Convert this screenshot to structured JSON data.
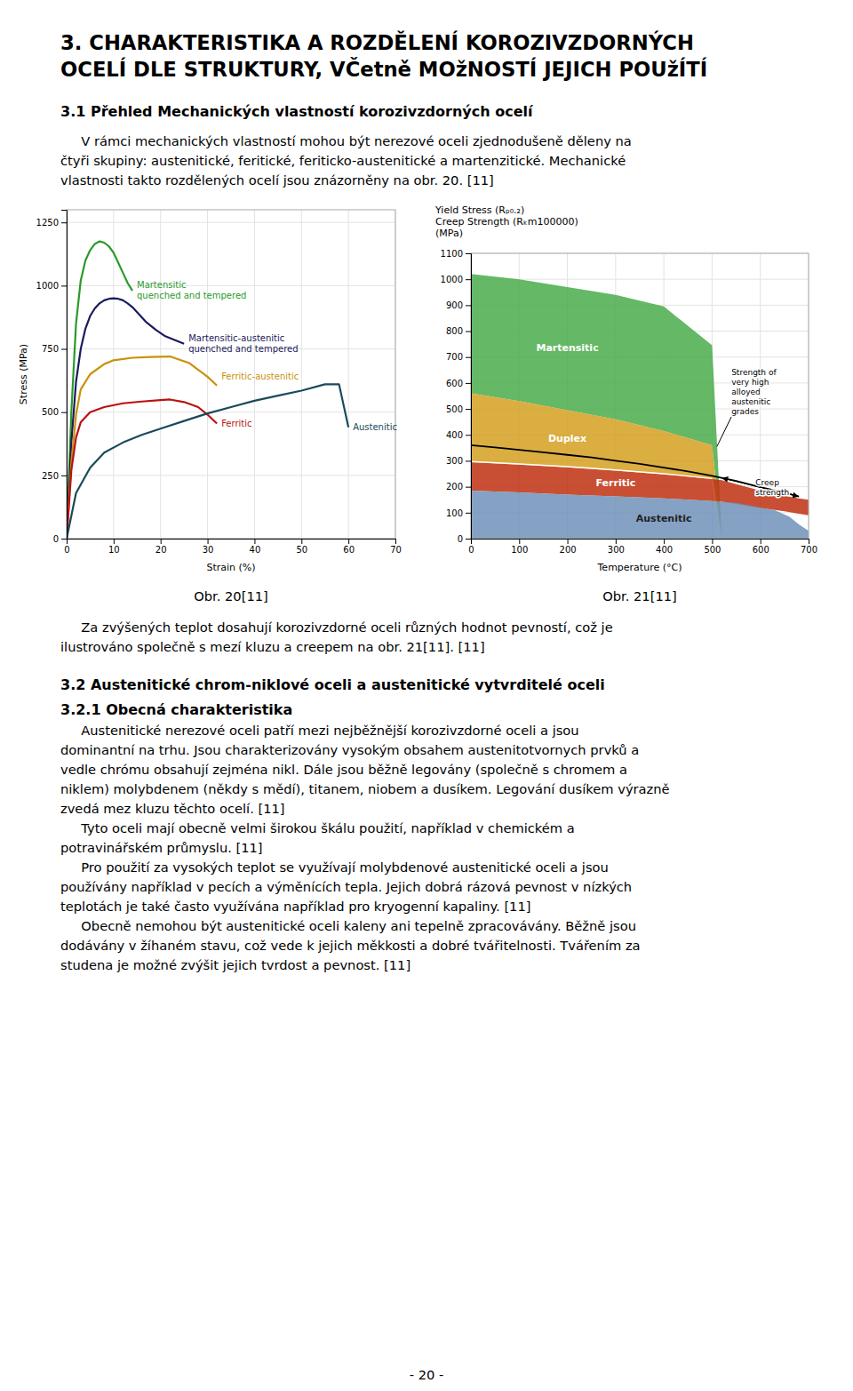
{
  "page_bg": "#ffffff",
  "text_color": "#000000",
  "title_line1": "3. CHARAKTERISTIKA A ROZDĚLENÍ KOROZIVZDORNÝCH",
  "title_line2": "OCELÍ DLE STRUKTURY, VČetně MOžNOSTÍ JEJICH POUžÍTÍ",
  "section_title": "3.1 Přehled Mechanických vlastností korozivzdorných ocelí",
  "para1_lines": [
    "     V rámci mechanických vlastností mohou být nerezové oceli zjednodušeně děleny na",
    "čtyři skupiny: austenitické, feritické, feriticko-austenitické a martenzitické. Mechanické",
    "vlastnosti takto rozdělených ocelí jsou znázorněny na obr. 20. [11]"
  ],
  "obr20_label": "Obr. 20[11]",
  "obr21_label": "Obr. 21[11]",
  "para2_lines": [
    "     Za zvýšených teplot dosahují korozivzdorné oceli různých hodnot pevností, což je",
    "ilustrováno společně s mezí kluzu a creepem na obr. 21[11]. [11]"
  ],
  "section2_title": "3.2 Austenitické chrom-niklové oceli a austenitické vytvrditelé oceli",
  "section21_title": "3.2.1 Obecná charakteristika",
  "para3_lines": [
    "     Austenitické nerezové oceli patří mezi nejběžnější korozivzdorné oceli a jsou",
    "dominantní na trhu. Jsou charakterizovány vysokým obsahem austenitotvornych prvků a",
    "vedle chrómu obsahují zejména nikl. Dále jsou běžně legovány (společně s chromem a",
    "niklem) molybdenem (někdy s mědí), titanem, niobem a dusíkem. Legování dusíkem výrazně",
    "zvedá mez kluzu těchto ocelí. [11]"
  ],
  "para4_lines": [
    "     Tyto oceli mají obecně velmi širokou škálu použití, například v chemickém a",
    "potravinářském průmyslu. [11]"
  ],
  "para5_lines": [
    "     Pro použití za vysokých teplot se využívají molybdenové austenitické oceli a jsou",
    "používány například v pecích a výměnících tepla. Jejich dobrá rázová pevnost v nízkých",
    "teplotách je také často využívána například pro kryogenní kapaliny. [11]"
  ],
  "para6_lines": [
    "     Obecně nemohou být austenitické oceli kaleny ani tepelně zpracovávány. Běžně jsou",
    "dodávány v žíhaném stavu, což vede k jejich měkkosti a dobré tvářitelnosti. Tvářením za",
    "studena je možné zvýšit jejich tvrdost a pevnost. [11]"
  ],
  "page_number": "- 20 -",
  "chart_data": [
    {
      "type": "line",
      "xlabel": "Strain (%)",
      "ylabel": "Stress (MPa)",
      "xlim": [
        0,
        70
      ],
      "ylim": [
        0,
        1300
      ],
      "xticks": [
        0,
        10,
        20,
        30,
        40,
        50,
        60,
        70
      ],
      "yticks": [
        0,
        250,
        500,
        750,
        1000,
        1250
      ],
      "grid": true,
      "series": [
        {
          "name": "Martensitic\nquenched and tempered",
          "color": "#2a9a2a",
          "x": [
            0,
            1,
            2,
            3,
            4,
            5,
            6,
            7,
            8,
            9,
            10,
            11,
            12,
            13,
            14
          ],
          "values": [
            0,
            500,
            850,
            1020,
            1100,
            1140,
            1165,
            1175,
            1170,
            1155,
            1130,
            1090,
            1050,
            1010,
            980
          ]
        },
        {
          "name": "Martensitic-austenitic\nquenched and tempered",
          "color": "#1a1a5e",
          "x": [
            0,
            1,
            2,
            3,
            4,
            5,
            6,
            7,
            8,
            9,
            10,
            11,
            12,
            13,
            14,
            15,
            17,
            19,
            21,
            23,
            25
          ],
          "values": [
            0,
            380,
            620,
            750,
            830,
            880,
            910,
            930,
            942,
            948,
            950,
            948,
            942,
            930,
            915,
            895,
            855,
            825,
            800,
            785,
            770
          ]
        },
        {
          "name": "Ferritic-austenitic",
          "color": "#c8920a",
          "x": [
            0,
            1,
            2,
            3,
            5,
            8,
            10,
            14,
            18,
            22,
            26,
            30,
            32
          ],
          "values": [
            0,
            300,
            490,
            590,
            650,
            690,
            705,
            715,
            718,
            720,
            695,
            640,
            605
          ]
        },
        {
          "name": "Ferritic",
          "color": "#bb1111",
          "x": [
            0,
            1,
            2,
            3,
            5,
            8,
            12,
            16,
            20,
            22,
            25,
            28,
            30,
            32
          ],
          "values": [
            0,
            270,
            400,
            460,
            500,
            520,
            535,
            542,
            548,
            550,
            540,
            520,
            490,
            455
          ]
        },
        {
          "name": "Austenitic",
          "color": "#1a4a5a",
          "x": [
            0,
            2,
            5,
            8,
            12,
            16,
            20,
            25,
            30,
            35,
            40,
            45,
            50,
            55,
            58,
            60
          ],
          "values": [
            0,
            180,
            280,
            340,
            380,
            410,
            435,
            465,
            495,
            520,
            545,
            565,
            585,
            610,
            610,
            440
          ]
        }
      ]
    },
    {
      "type": "area",
      "xlabel": "Temperature (°C)",
      "ylabel": "Yield Stress (Rₚ₀.₂)\nCreep Strength (Rₖm100000)\n(MPa)",
      "xlim": [
        0,
        700
      ],
      "ylim": [
        0,
        1100
      ],
      "xticks": [
        0,
        100,
        200,
        300,
        400,
        500,
        600,
        700
      ],
      "yticks": [
        0,
        100,
        200,
        300,
        400,
        500,
        600,
        700,
        800,
        900,
        1000,
        1100
      ],
      "grid": true,
      "series": [
        {
          "name": "Martensitic",
          "type": "area",
          "color": "#4aac4a",
          "x": [
            0,
            100,
            200,
            300,
            400,
            500,
            520
          ],
          "low": [
            560,
            530,
            495,
            460,
            415,
            360,
            0
          ],
          "high": [
            1020,
            1000,
            970,
            940,
            895,
            745,
            0
          ]
        },
        {
          "name": "Duplex",
          "type": "area",
          "color": "#d4a020",
          "x": [
            0,
            100,
            200,
            300,
            400,
            500,
            520
          ],
          "low": [
            295,
            285,
            275,
            262,
            248,
            230,
            0
          ],
          "high": [
            560,
            530,
            495,
            460,
            415,
            360,
            0
          ]
        },
        {
          "name": "Ferritic",
          "type": "area",
          "color": "#c03010",
          "x": [
            0,
            100,
            200,
            300,
            400,
            500,
            520,
            600,
            650,
            680,
            700
          ],
          "low": [
            185,
            178,
            170,
            163,
            155,
            145,
            142,
            118,
            105,
            96,
            90
          ],
          "high": [
            295,
            285,
            275,
            262,
            248,
            230,
            225,
            185,
            165,
            155,
            150
          ]
        },
        {
          "name": "Austenitic",
          "type": "area",
          "color": "#7090b8",
          "x": [
            0,
            100,
            200,
            300,
            400,
            500,
            550,
            600,
            630,
            660,
            680,
            700
          ],
          "low": [
            0,
            0,
            0,
            0,
            0,
            0,
            0,
            0,
            0,
            0,
            0,
            0
          ],
          "high": [
            185,
            178,
            170,
            163,
            155,
            145,
            138,
            120,
            110,
            85,
            55,
            30
          ]
        },
        {
          "type": "line",
          "color": "#000000",
          "x": [
            0,
            50,
            100,
            150,
            200,
            250,
            300,
            350,
            400,
            450,
            500,
            550,
            600,
            650,
            680
          ],
          "values": [
            360,
            352,
            342,
            333,
            323,
            313,
            300,
            288,
            274,
            259,
            242,
            222,
            198,
            178,
            162
          ]
        },
        {
          "type": "area",
          "color": "#ffffff",
          "x": [
            0,
            100,
            200,
            300,
            400,
            500,
            520
          ],
          "low": [
            295,
            285,
            275,
            262,
            248,
            230,
            0
          ],
          "high": [
            300,
            290,
            280,
            267,
            253,
            234,
            0
          ]
        }
      ],
      "annotations": [
        {
          "text": "Strength of\nvery high\nalloyed\naustenitic\ngrades",
          "x": 510,
          "y": 355,
          "text_x": 540,
          "text_y": 480
        },
        {
          "text": "Creep\nstrength",
          "x": 590,
          "y": 195,
          "arrow_x": [
            520,
            680
          ],
          "arrow_y": [
            234,
            162
          ]
        }
      ]
    }
  ]
}
